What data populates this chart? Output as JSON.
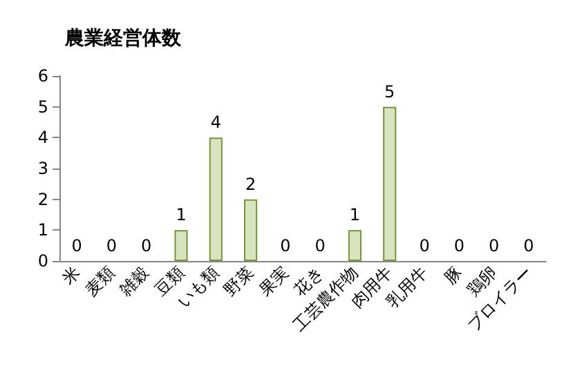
{
  "chart_data": {
    "type": "bar",
    "title": "農業経営体数",
    "categories": [
      "米",
      "麦類",
      "雑穀",
      "豆類",
      "いも類",
      "野菜",
      "果実",
      "花き",
      "工芸農作物",
      "肉用牛",
      "乳用牛",
      "豚",
      "鶏卵",
      "ブロイラー"
    ],
    "values": [
      0,
      0,
      0,
      1,
      4,
      2,
      0,
      0,
      1,
      5,
      0,
      0,
      0,
      0
    ],
    "color": "#d7e4bd",
    "ylim": [
      0,
      6
    ],
    "yticks": [
      0,
      1,
      2,
      3,
      4,
      5,
      6
    ],
    "grid": false,
    "data_labels": true
  }
}
